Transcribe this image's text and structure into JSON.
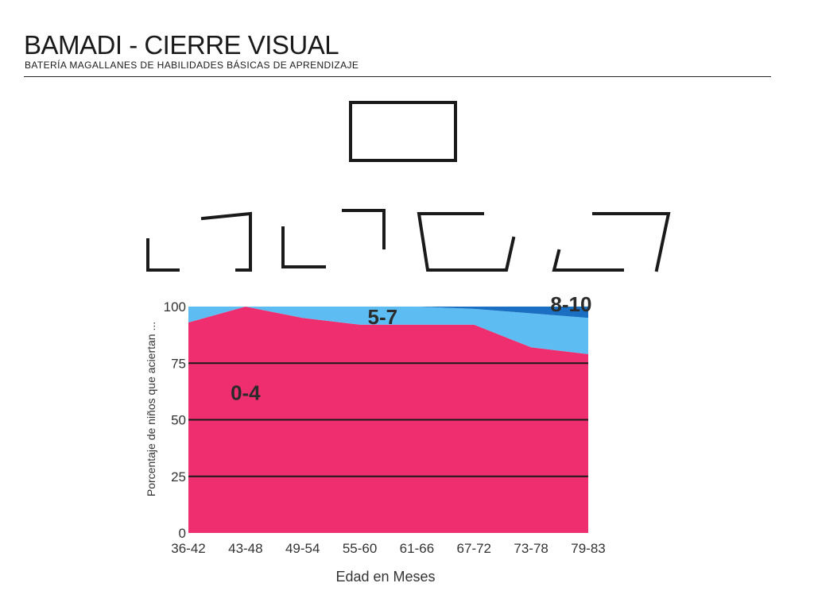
{
  "header": {
    "title": "BAMADI - CIERRE VISUAL",
    "subtitle": "BATERÍA MAGALLANES DE HABILIDADES BÁSICAS DE APRENDIZAJE"
  },
  "chart_data": {
    "type": "area",
    "stacked": true,
    "categories": [
      "36-42",
      "43-48",
      "49-54",
      "55-60",
      "61-66",
      "67-72",
      "73-78",
      "79-83"
    ],
    "series": [
      {
        "name": "0-4",
        "values": [
          93,
          100,
          95,
          92,
          92,
          92,
          82,
          79
        ],
        "color": "#ef2e6f"
      },
      {
        "name": "5-7",
        "values": [
          7,
          0,
          5,
          8,
          8,
          7,
          15,
          16
        ],
        "color": "#5dbdf2"
      },
      {
        "name": "8-10",
        "values": [
          0,
          0,
          0,
          0,
          0,
          1,
          3,
          5
        ],
        "color": "#1a6fc2"
      }
    ],
    "ylim": [
      0,
      100
    ],
    "yticks": [
      "0",
      "25",
      "50",
      "75",
      "100"
    ],
    "xlabel": "Edad en Meses",
    "ylabel": "Porcentaje de niños que aciertan ...",
    "grid": {
      "horizontal": true,
      "color": "#1a1a1a"
    }
  }
}
